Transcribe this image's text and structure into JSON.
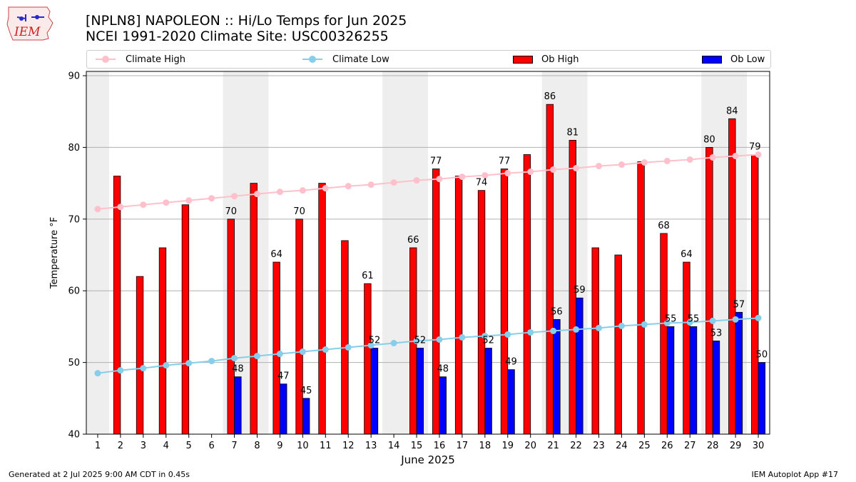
{
  "logo": {
    "text": "IEM"
  },
  "title": {
    "line1": "[NPLN8] NAPOLEON :: Hi/Lo Temps for Jun 2025",
    "line2": "NCEI 1991-2020 Climate Site: USC00326255"
  },
  "legend": [
    {
      "label": "Climate High",
      "kind": "line",
      "color": "#ffc0cb"
    },
    {
      "label": "Climate Low",
      "kind": "line",
      "color": "#87ceeb"
    },
    {
      "label": "Ob High",
      "kind": "bar",
      "color": "#ff0000"
    },
    {
      "label": "Ob Low",
      "kind": "bar",
      "color": "#0000ff"
    }
  ],
  "footer": {
    "left": "Generated at 2 Jul 2025 9:00 AM CDT in 0.45s",
    "right": "IEM Autoplot App #17"
  },
  "chart_data": {
    "type": "bar",
    "xlabel": "June 2025",
    "ylabel": "Temperature °F",
    "ylim": [
      40,
      90.6
    ],
    "yticks": [
      40,
      50,
      60,
      70,
      80,
      90
    ],
    "grid": "y",
    "legend_position": "top",
    "weekend_shading": [
      [
        1,
        1
      ],
      [
        7,
        8
      ],
      [
        14,
        15
      ],
      [
        21,
        22
      ],
      [
        28,
        29
      ]
    ],
    "x": [
      1,
      2,
      3,
      4,
      5,
      6,
      7,
      8,
      9,
      10,
      11,
      12,
      13,
      14,
      15,
      16,
      17,
      18,
      19,
      20,
      21,
      22,
      23,
      24,
      25,
      26,
      27,
      28,
      29,
      30
    ],
    "series": [
      {
        "name": "Ob High",
        "type": "bar",
        "color": "#ff0000",
        "values": [
          null,
          76,
          62,
          66,
          72,
          null,
          70,
          75,
          64,
          70,
          75,
          67,
          61,
          null,
          66,
          77,
          76,
          74,
          77,
          79,
          86,
          81,
          66,
          65,
          78,
          68,
          64,
          80,
          84,
          79
        ],
        "labeled_days": [
          7,
          9,
          10,
          13,
          15,
          16,
          18,
          19,
          21,
          22,
          26,
          27,
          28,
          29,
          30
        ]
      },
      {
        "name": "Ob Low",
        "type": "bar",
        "color": "#0000ff",
        "values": [
          null,
          null,
          null,
          null,
          null,
          null,
          48,
          null,
          47,
          45,
          null,
          null,
          52,
          null,
          52,
          48,
          null,
          52,
          49,
          null,
          56,
          59,
          null,
          null,
          null,
          55,
          55,
          53,
          57,
          50
        ],
        "labeled_days": [
          7,
          9,
          10,
          13,
          15,
          16,
          18,
          19,
          21,
          22,
          26,
          27,
          28,
          29,
          30
        ]
      },
      {
        "name": "Climate High",
        "type": "line",
        "color": "#ffc0cb",
        "values": [
          71.4,
          71.7,
          72.0,
          72.3,
          72.6,
          72.9,
          73.2,
          73.5,
          73.8,
          74.0,
          74.3,
          74.6,
          74.8,
          75.1,
          75.4,
          75.6,
          75.9,
          76.1,
          76.4,
          76.6,
          76.9,
          77.1,
          77.4,
          77.6,
          77.9,
          78.1,
          78.3,
          78.6,
          78.8,
          79.0
        ]
      },
      {
        "name": "Climate Low",
        "type": "line",
        "color": "#87ceeb",
        "values": [
          48.5,
          48.9,
          49.2,
          49.6,
          49.9,
          50.2,
          50.6,
          50.9,
          51.2,
          51.5,
          51.8,
          52.1,
          52.4,
          52.7,
          53.0,
          53.2,
          53.5,
          53.7,
          53.9,
          54.2,
          54.4,
          54.6,
          54.8,
          55.1,
          55.3,
          55.5,
          55.6,
          55.8,
          56.0,
          56.2
        ]
      }
    ]
  }
}
